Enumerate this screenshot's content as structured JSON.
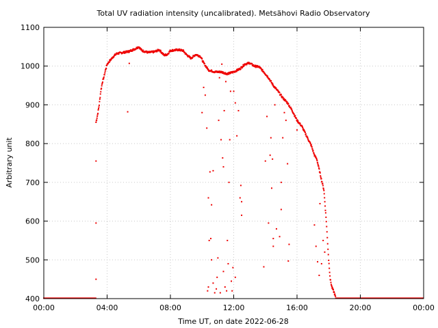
{
  "chart_data": {
    "type": "scatter",
    "title": "Total UV radiation intensity (uncalibrated). Metsähovi Radio Observatory",
    "xlabel": "Time UT, on date 2022-06-28",
    "ylabel": "Arbitrary unit",
    "xlim": [
      0,
      24
    ],
    "ylim": [
      400,
      1100
    ],
    "x_tick_labels": [
      "00:00",
      "04:00",
      "08:00",
      "12:00",
      "16:00",
      "20:00",
      "00:00"
    ],
    "x_ticks": [
      0,
      4,
      8,
      12,
      16,
      20,
      24
    ],
    "y_ticks": [
      400,
      500,
      600,
      700,
      800,
      900,
      1000,
      1100
    ],
    "grid": true,
    "series": [
      {
        "name": "UV intensity",
        "color": "#ee0000",
        "baseline": {
          "x_start": 0.0,
          "x_end": 3.3,
          "y": 401
        },
        "baseline_after": {
          "x_start": 18.45,
          "x_end": 24.0,
          "y": 401
        },
        "envelope": [
          [
            3.3,
            855
          ],
          [
            3.4,
            875
          ],
          [
            3.5,
            900
          ],
          [
            3.6,
            935
          ],
          [
            3.7,
            958
          ],
          [
            3.8,
            972
          ],
          [
            3.9,
            990
          ],
          [
            4.0,
            1005
          ],
          [
            4.2,
            1015
          ],
          [
            4.4,
            1025
          ],
          [
            4.6,
            1032
          ],
          [
            5.0,
            1035
          ],
          [
            5.4,
            1038
          ],
          [
            5.8,
            1045
          ],
          [
            6.0,
            1050
          ],
          [
            6.2,
            1040
          ],
          [
            6.6,
            1035
          ],
          [
            7.0,
            1037
          ],
          [
            7.3,
            1042
          ],
          [
            7.6,
            1028
          ],
          [
            7.8,
            1030
          ],
          [
            8.0,
            1040
          ],
          [
            8.5,
            1042
          ],
          [
            8.8,
            1040
          ],
          [
            9.0,
            1030
          ],
          [
            9.3,
            1020
          ],
          [
            9.6,
            1030
          ],
          [
            9.9,
            1025
          ],
          [
            10.1,
            1008
          ],
          [
            10.4,
            990
          ],
          [
            10.8,
            985
          ],
          [
            11.2,
            985
          ],
          [
            11.6,
            980
          ],
          [
            12.0,
            985
          ],
          [
            12.4,
            993
          ],
          [
            12.7,
            1005
          ],
          [
            13.0,
            1008
          ],
          [
            13.3,
            1000
          ],
          [
            13.6,
            998
          ],
          [
            13.9,
            985
          ],
          [
            14.2,
            970
          ],
          [
            14.5,
            950
          ],
          [
            14.8,
            935
          ],
          [
            15.1,
            918
          ],
          [
            15.4,
            905
          ],
          [
            15.7,
            885
          ],
          [
            16.0,
            860
          ],
          [
            16.3,
            845
          ],
          [
            16.6,
            820
          ],
          [
            16.9,
            795
          ],
          [
            17.1,
            770
          ],
          [
            17.25,
            760
          ],
          [
            17.5,
            715
          ],
          [
            17.7,
            680
          ],
          [
            17.85,
            600
          ],
          [
            18.0,
            500
          ],
          [
            18.1,
            450
          ],
          [
            18.2,
            430
          ],
          [
            18.35,
            415
          ],
          [
            18.45,
            402
          ]
        ],
        "scattered_points": [
          [
            3.3,
            450
          ],
          [
            3.3,
            595
          ],
          [
            3.3,
            755
          ],
          [
            5.3,
            882
          ],
          [
            5.4,
            1007
          ],
          [
            10.0,
            880
          ],
          [
            10.1,
            945
          ],
          [
            10.2,
            925
          ],
          [
            10.3,
            840
          ],
          [
            10.4,
            660
          ],
          [
            10.45,
            550
          ],
          [
            10.5,
            727
          ],
          [
            10.55,
            555
          ],
          [
            10.6,
            642
          ],
          [
            10.6,
            500
          ],
          [
            10.7,
            730
          ],
          [
            10.75,
            985
          ],
          [
            10.8,
            415
          ],
          [
            10.9,
            425
          ],
          [
            11.0,
            505
          ],
          [
            11.05,
            860
          ],
          [
            11.1,
            970
          ],
          [
            11.2,
            810
          ],
          [
            11.25,
            1005
          ],
          [
            11.3,
            763
          ],
          [
            11.35,
            740
          ],
          [
            11.4,
            885
          ],
          [
            11.5,
            960
          ],
          [
            11.55,
            420
          ],
          [
            11.6,
            550
          ],
          [
            11.7,
            700
          ],
          [
            11.75,
            810
          ],
          [
            11.8,
            935
          ],
          [
            11.9,
            420
          ],
          [
            12.0,
            935
          ],
          [
            12.1,
            905
          ],
          [
            12.2,
            820
          ],
          [
            12.3,
            885
          ],
          [
            12.4,
            660
          ],
          [
            12.45,
            692
          ],
          [
            12.5,
            615
          ],
          [
            12.5,
            650
          ],
          [
            12.1,
            455
          ],
          [
            11.95,
            480
          ],
          [
            11.85,
            445
          ],
          [
            11.65,
            490
          ],
          [
            11.45,
            430
          ],
          [
            11.35,
            470
          ],
          [
            11.15,
            415
          ],
          [
            10.95,
            455
          ],
          [
            10.7,
            440
          ],
          [
            10.4,
            430
          ],
          [
            10.35,
            420
          ],
          [
            13.9,
            482
          ],
          [
            14.0,
            755
          ],
          [
            14.1,
            870
          ],
          [
            14.2,
            595
          ],
          [
            14.3,
            770
          ],
          [
            14.35,
            815
          ],
          [
            14.4,
            685
          ],
          [
            14.45,
            760
          ],
          [
            14.5,
            555
          ],
          [
            14.5,
            535
          ],
          [
            14.6,
            900
          ],
          [
            14.7,
            580
          ],
          [
            14.9,
            560
          ],
          [
            15.0,
            630
          ],
          [
            15.0,
            700
          ],
          [
            15.1,
            815
          ],
          [
            15.2,
            880
          ],
          [
            15.3,
            860
          ],
          [
            15.4,
            748
          ],
          [
            15.45,
            497
          ],
          [
            15.5,
            540
          ],
          [
            16.0,
            835
          ],
          [
            17.1,
            590
          ],
          [
            17.2,
            535
          ],
          [
            17.3,
            495
          ],
          [
            17.4,
            460
          ],
          [
            17.45,
            645
          ],
          [
            17.55,
            490
          ],
          [
            17.65,
            550
          ],
          [
            17.75,
            520
          ]
        ]
      }
    ]
  }
}
